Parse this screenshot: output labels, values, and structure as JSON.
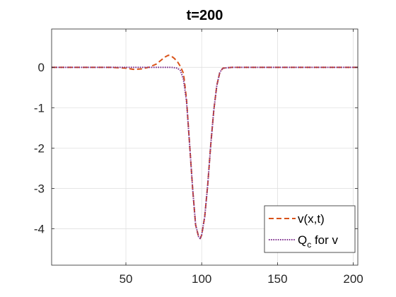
{
  "chart_data": {
    "type": "line",
    "title": "t=200",
    "xlabel": "",
    "ylabel": "",
    "xlim": [
      1,
      203
    ],
    "ylim": [
      -4.9,
      0.95
    ],
    "xticks": [
      50,
      100,
      150,
      200
    ],
    "yticks": [
      0,
      -1,
      -2,
      -3,
      -4
    ],
    "grid": true,
    "legend_position": "bottom-right",
    "series": [
      {
        "name": "v(x,t)",
        "color": "#D95319",
        "style": "dashed",
        "x": [
          1,
          20,
          40,
          50,
          55,
          60,
          65,
          70,
          73,
          76,
          78,
          80,
          82,
          84,
          86,
          88,
          90,
          92,
          94,
          96,
          98,
          99,
          100,
          102,
          104,
          106,
          108,
          110,
          112,
          114,
          120,
          150,
          203
        ],
        "y": [
          0,
          0,
          0,
          -0.02,
          -0.05,
          -0.04,
          0.0,
          0.08,
          0.17,
          0.26,
          0.3,
          0.28,
          0.22,
          0.14,
          0.02,
          -0.15,
          -0.8,
          -1.9,
          -3.0,
          -3.9,
          -4.2,
          -4.24,
          -4.15,
          -3.7,
          -2.9,
          -1.9,
          -1.05,
          -0.45,
          -0.12,
          -0.02,
          0,
          0,
          0
        ]
      },
      {
        "name": "Q_c for v",
        "label_main": "Q",
        "label_sub": "c",
        "label_rest": " for v",
        "color": "#7E2F8E",
        "style": "dotted",
        "x": [
          1,
          20,
          40,
          60,
          70,
          80,
          84,
          86,
          88,
          90,
          92,
          94,
          96,
          98,
          99,
          100,
          102,
          104,
          106,
          108,
          110,
          112,
          114,
          120,
          150,
          203
        ],
        "y": [
          0,
          0,
          0,
          0,
          0,
          0,
          -0.02,
          -0.08,
          -0.3,
          -0.85,
          -1.9,
          -3.0,
          -3.9,
          -4.2,
          -4.24,
          -4.15,
          -3.7,
          -2.9,
          -1.9,
          -1.05,
          -0.45,
          -0.12,
          -0.02,
          0,
          0,
          0
        ]
      }
    ]
  }
}
